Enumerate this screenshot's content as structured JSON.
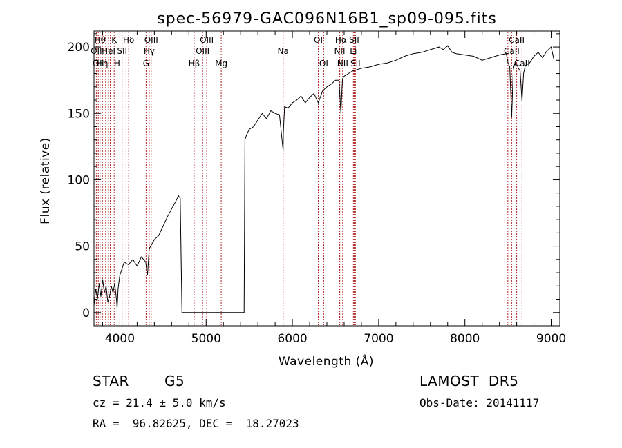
{
  "colors": {
    "axes": "#000000",
    "spectrum": "#000000",
    "lines": "#b22222",
    "background": "#ffffff"
  },
  "footer": {
    "object": "STAR",
    "subclass": "G5",
    "survey": "LAMOST  DR5",
    "cz": "cz = 21.4 ± 5.0 km/s",
    "obs_date": "Obs-Date: 20141117",
    "radec": "RA =  96.82625, DEC =  18.27023"
  },
  "chart_data": {
    "type": "line",
    "title": "spec-56979-GAC096N16B1_sp09-095.fits",
    "xlabel": "Wavelength (Å)",
    "ylabel": "Flux (relative)",
    "xlim": [
      3700,
      9100
    ],
    "ylim": [
      -10,
      212
    ],
    "xticks": [
      4000,
      5000,
      6000,
      7000,
      8000,
      9000
    ],
    "yticks": [
      0,
      50,
      100,
      150,
      200
    ],
    "grid": false,
    "spectrum": {
      "x": [
        3700,
        3720,
        3740,
        3760,
        3780,
        3800,
        3820,
        3840,
        3860,
        3880,
        3900,
        3920,
        3940,
        3960,
        3968,
        3980,
        4000,
        4050,
        4100,
        4150,
        4200,
        4250,
        4300,
        4320,
        4340,
        4400,
        4450,
        4500,
        4550,
        4600,
        4650,
        4680,
        4700,
        4710,
        4720,
        4740,
        5400,
        5440,
        5450,
        5470,
        5500,
        5550,
        5600,
        5650,
        5700,
        5750,
        5800,
        5850,
        5893,
        5895,
        5910,
        5950,
        6000,
        6050,
        6100,
        6150,
        6200,
        6250,
        6300,
        6350,
        6400,
        6450,
        6500,
        6540,
        6563,
        6580,
        6600,
        6650,
        6700,
        6750,
        6800,
        6900,
        7000,
        7100,
        7200,
        7300,
        7400,
        7500,
        7600,
        7700,
        7750,
        7800,
        7850,
        7900,
        8000,
        8100,
        8200,
        8300,
        8400,
        8480,
        8500,
        8520,
        8542,
        8560,
        8580,
        8600,
        8620,
        8640,
        8662,
        8680,
        8700,
        8750,
        8800,
        8850,
        8900,
        8950,
        9000,
        9030
      ],
      "y": [
        5,
        18,
        10,
        22,
        12,
        25,
        15,
        20,
        8,
        12,
        20,
        15,
        22,
        10,
        3,
        18,
        28,
        38,
        36,
        40,
        35,
        42,
        38,
        28,
        48,
        55,
        58,
        65,
        72,
        78,
        84,
        88,
        86,
        40,
        0,
        0,
        0,
        0,
        130,
        134,
        138,
        140,
        145,
        150,
        146,
        152,
        150,
        149,
        122,
        135,
        155,
        154,
        158,
        160,
        163,
        158,
        162,
        165,
        158,
        167,
        170,
        172,
        175,
        175,
        150,
        176,
        178,
        180,
        182,
        183,
        184,
        185,
        187,
        188,
        190,
        193,
        195,
        196,
        198,
        200,
        198,
        201,
        196,
        195,
        194,
        193,
        190,
        192,
        194,
        195,
        188,
        185,
        147,
        183,
        188,
        187,
        184,
        182,
        159,
        180,
        186,
        188,
        193,
        196,
        192,
        197,
        200,
        191
      ]
    },
    "lines": [
      {
        "w": 3727,
        "label": "OII",
        "row": 2
      },
      {
        "w": 3750,
        "label": "OII",
        "row": 3
      },
      {
        "w": 3770,
        "label": "Hθ",
        "row": 1
      },
      {
        "w": 3798,
        "label": "Hη",
        "row": 3
      },
      {
        "w": 3835,
        "label": "",
        "row": 0
      },
      {
        "w": 3869,
        "label": "HeI",
        "row": 2
      },
      {
        "w": 3889,
        "label": "",
        "row": 0
      },
      {
        "w": 3934,
        "label": "K",
        "row": 1
      },
      {
        "w": 3968,
        "label": "H",
        "row": 3
      },
      {
        "w": 4026,
        "label": "SII",
        "row": 2
      },
      {
        "w": 4072,
        "label": "",
        "row": 0
      },
      {
        "w": 4102,
        "label": "Hδ",
        "row": 1
      },
      {
        "w": 4304,
        "label": "G",
        "row": 3
      },
      {
        "w": 4340,
        "label": "Hγ",
        "row": 2
      },
      {
        "w": 4363,
        "label": "OIII",
        "row": 1
      },
      {
        "w": 4861,
        "label": "Hβ",
        "row": 3
      },
      {
        "w": 4959,
        "label": "OIII",
        "row": 2
      },
      {
        "w": 5007,
        "label": "OIII",
        "row": 1
      },
      {
        "w": 5175,
        "label": "Mg",
        "row": 3
      },
      {
        "w": 5893,
        "label": "Na",
        "row": 2
      },
      {
        "w": 6300,
        "label": "OI",
        "row": 1
      },
      {
        "w": 6363,
        "label": "OI",
        "row": 3
      },
      {
        "w": 6548,
        "label": "NII",
        "row": 2
      },
      {
        "w": 6563,
        "label": "Hα",
        "row": 1
      },
      {
        "w": 6583,
        "label": "NII",
        "row": 3
      },
      {
        "w": 6707,
        "label": "Li",
        "row": 2
      },
      {
        "w": 6716,
        "label": "SII",
        "row": 1
      },
      {
        "w": 6731,
        "label": "SII",
        "row": 3
      },
      {
        "w": 8498,
        "label": "",
        "row": 0
      },
      {
        "w": 8542,
        "label": "CaII",
        "row": 2
      },
      {
        "w": 8600,
        "label": "CaII",
        "row": 1
      },
      {
        "w": 8662,
        "label": "CaII",
        "row": 3
      }
    ]
  }
}
